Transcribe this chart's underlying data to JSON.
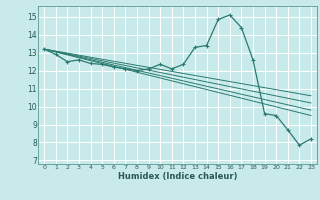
{
  "xlabel": "Humidex (Indice chaleur)",
  "xlim": [
    -0.5,
    23.5
  ],
  "ylim": [
    6.8,
    15.6
  ],
  "yticks": [
    7,
    8,
    9,
    10,
    11,
    12,
    13,
    14,
    15
  ],
  "xticks": [
    0,
    1,
    2,
    3,
    4,
    5,
    6,
    7,
    8,
    9,
    10,
    11,
    12,
    13,
    14,
    15,
    16,
    17,
    18,
    19,
    20,
    21,
    22,
    23
  ],
  "background_color": "#c8eaea",
  "grid_color": "#ffffff",
  "line_color": "#2a7a6f",
  "main_curve_x": [
    0,
    1,
    2,
    3,
    4,
    5,
    6,
    7,
    8,
    9,
    10,
    11,
    12,
    13,
    14,
    15,
    16,
    17,
    18,
    19,
    20,
    21,
    22,
    23
  ],
  "main_curve_y": [
    13.2,
    12.9,
    12.5,
    12.6,
    12.4,
    12.35,
    12.2,
    12.1,
    12.0,
    12.1,
    12.35,
    12.1,
    12.35,
    13.3,
    13.4,
    14.85,
    15.1,
    14.4,
    12.6,
    9.6,
    9.5,
    8.7,
    7.85,
    8.2
  ],
  "linear_lines": [
    {
      "x0": 0,
      "y0": 13.2,
      "x1": 23,
      "y1": 9.5
    },
    {
      "x0": 0,
      "y0": 13.2,
      "x1": 23,
      "y1": 9.8
    },
    {
      "x0": 0,
      "y0": 13.2,
      "x1": 23,
      "y1": 10.2
    },
    {
      "x0": 0,
      "y0": 13.2,
      "x1": 23,
      "y1": 10.6
    }
  ]
}
